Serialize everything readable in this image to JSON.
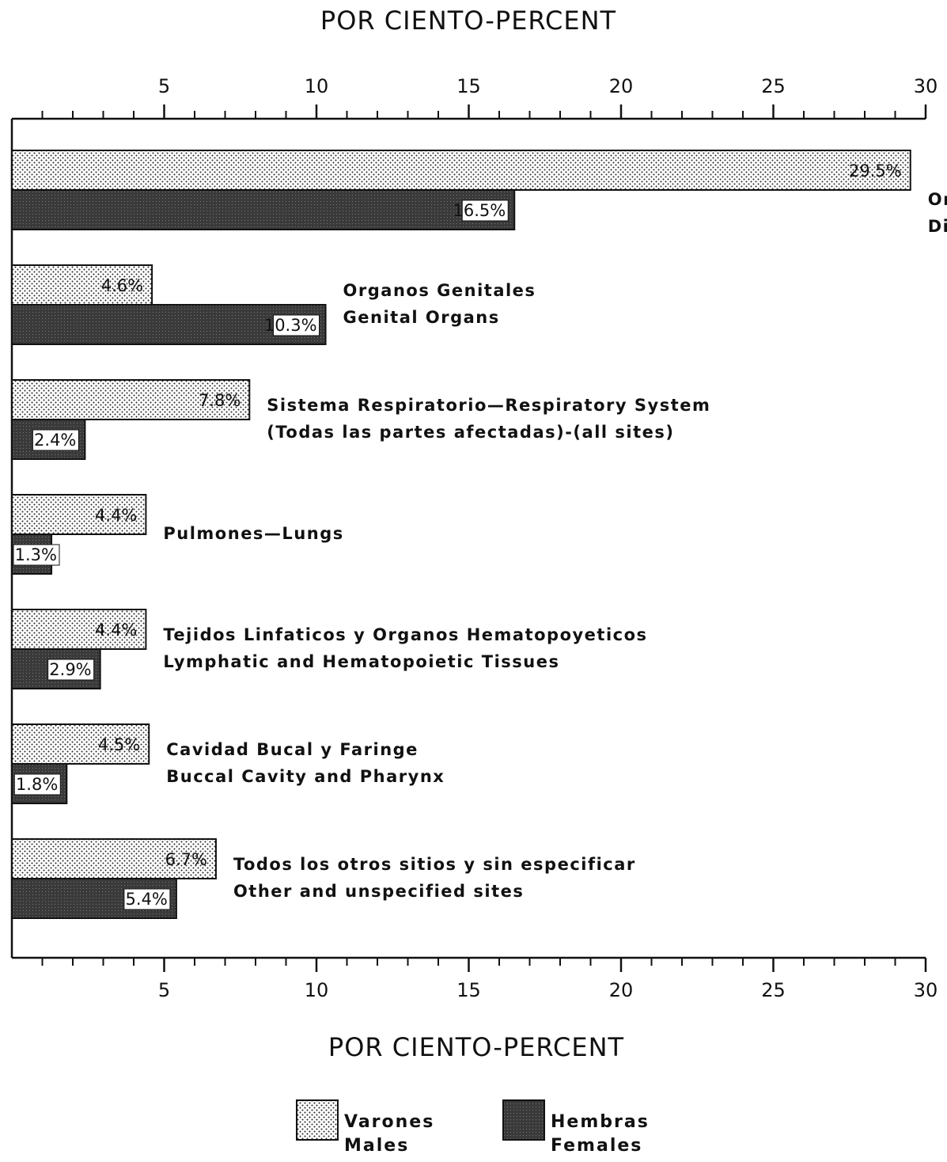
{
  "chart_data": {
    "type": "bar",
    "orientation": "horizontal",
    "xlabel": "POR CIENTO-PERCENT",
    "categories": [
      [
        "Organos Digestivos y Peritoneo",
        "Digestive Organs and Peritoneum"
      ],
      [
        "Organos Genitales",
        "Genital Organs"
      ],
      [
        "Sistema Respiratorio—Respiratory System",
        "(Todas las partes afectadas)-(all sites)"
      ],
      [
        "Pulmones—Lungs"
      ],
      [
        "Tejidos Linfaticos y Organos Hematopoyeticos",
        "Lymphatic and Hematopoietic Tissues"
      ],
      [
        "Cavidad Bucal y Faringe",
        "Buccal Cavity and Pharynx"
      ],
      [
        "Todos los otros sitios y sin especificar",
        "Other and unspecified sites"
      ]
    ],
    "series": [
      {
        "name": [
          "Varones",
          "Males"
        ],
        "color": "#ffffff",
        "values": [
          29.5,
          4.6,
          7.8,
          4.4,
          4.4,
          4.5,
          6.7
        ],
        "value_labels": [
          "29.5%",
          "4.6%",
          "7.8%",
          "4.4%",
          "4.4%",
          "4.5%",
          "6.7%"
        ]
      },
      {
        "name": [
          "Hembras",
          "Females"
        ],
        "color": "#3a3a3a",
        "values": [
          16.5,
          10.3,
          2.4,
          1.3,
          2.9,
          1.8,
          5.4
        ],
        "value_labels": [
          "16.5%",
          "10.3%",
          "2.4%",
          "1.3%",
          "2.9%",
          "1.8%",
          "5.4%"
        ]
      }
    ],
    "xlim": [
      0,
      30
    ],
    "xticks": [
      5,
      10,
      15,
      20,
      25,
      30
    ],
    "xminorticks": [
      1,
      2,
      3,
      4,
      6,
      7,
      8,
      9,
      11,
      12,
      13,
      14,
      16,
      17,
      18,
      19,
      21,
      22,
      23,
      24,
      26,
      27,
      28,
      29
    ]
  }
}
